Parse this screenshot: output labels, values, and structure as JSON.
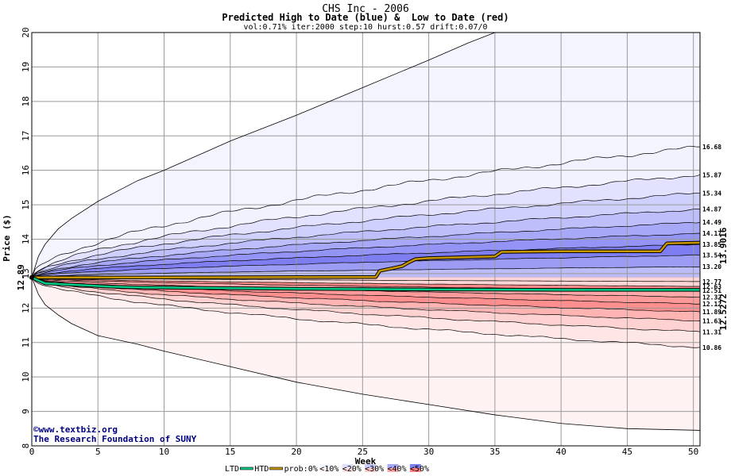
{
  "chart_data": {
    "type": "area",
    "title": "CHS Inc - 2006",
    "subtitle": "Predicted High to Date (blue) &  Low to Date (red)",
    "params": "vol:0.71% iter:2000 step:10 hurst:0.57 drift:0.07/0",
    "xlabel": "Week",
    "ylabel": "Price ($)",
    "xlim": [
      0,
      50.5
    ],
    "ylim": [
      8,
      20
    ],
    "x_ticks": [
      0,
      5,
      10,
      15,
      20,
      25,
      30,
      35,
      40,
      45,
      50
    ],
    "y_ticks": [
      8,
      9,
      10,
      11,
      12,
      13,
      14,
      15,
      16,
      17,
      18,
      19,
      20
    ],
    "grid": true,
    "start_price": 12.89,
    "start_label": "12.89",
    "upper_curves": [
      {
        "end": 16.68,
        "label": "16.68",
        "color": "#f2f2ff"
      },
      {
        "end": 15.87,
        "label": "15.87",
        "color": "#e2e2fe"
      },
      {
        "end": 15.34,
        "label": "15.34",
        "color": "#d0d0fc"
      },
      {
        "end": 14.87,
        "label": "14.87",
        "color": "#bebefa"
      },
      {
        "end": 14.49,
        "label": "14.49",
        "color": "#a8a8f8"
      },
      {
        "end": 14.17,
        "label": "14.17",
        "color": "#9494f6"
      },
      {
        "end": 13.85,
        "label": "13.85",
        "color": "#7e7ef0"
      },
      {
        "end": 13.54,
        "label": "13.54",
        "color": "#9c9cf4"
      },
      {
        "end": 13.2,
        "label": "13.20",
        "color": "#bcbcf8"
      },
      {
        "end": 12.77,
        "label": "12.77",
        "color": "#e4e4fc"
      }
    ],
    "lower_curves": [
      {
        "end": 12.63,
        "label": "12.63",
        "color": "#ffd6d6"
      },
      {
        "end": 12.51,
        "label": "12.51",
        "color": "#ff8a8a"
      },
      {
        "end": 12.32,
        "label": "12.32",
        "color": "#ffaaaa"
      },
      {
        "end": 12.12,
        "label": "12.12",
        "color": "#ff9a9a"
      },
      {
        "end": 11.89,
        "label": "11.89",
        "color": "#ff8e8e"
      },
      {
        "end": 11.63,
        "label": "11.63",
        "color": "#ffb4b4"
      },
      {
        "end": 11.31,
        "label": "11.31",
        "color": "#ffd2d2"
      },
      {
        "end": 10.86,
        "label": "10.86",
        "color": "#ffe6e6"
      }
    ],
    "outer_envelope": {
      "upper": [
        [
          0,
          12.89
        ],
        [
          0.5,
          13.5
        ],
        [
          1,
          13.85
        ],
        [
          2,
          14.3
        ],
        [
          3,
          14.6
        ],
        [
          5,
          15.1
        ],
        [
          8,
          15.7
        ],
        [
          10,
          16.0
        ],
        [
          15,
          16.85
        ],
        [
          20,
          17.6
        ],
        [
          25,
          18.4
        ],
        [
          30,
          19.2
        ],
        [
          33,
          19.7
        ],
        [
          35,
          20.0
        ],
        [
          40,
          20.0
        ],
        [
          50.5,
          20.0
        ]
      ],
      "lower": [
        [
          0,
          12.89
        ],
        [
          0.5,
          12.4
        ],
        [
          1,
          12.1
        ],
        [
          2,
          11.8
        ],
        [
          3,
          11.55
        ],
        [
          5,
          11.2
        ],
        [
          8,
          10.95
        ],
        [
          10,
          10.75
        ],
        [
          15,
          10.3
        ],
        [
          20,
          9.85
        ],
        [
          25,
          9.5
        ],
        [
          30,
          9.2
        ],
        [
          35,
          8.9
        ],
        [
          40,
          8.65
        ],
        [
          45,
          8.5
        ],
        [
          50.5,
          8.45
        ]
      ]
    },
    "series": [
      {
        "name": "HTD",
        "color": "#c89600",
        "points": [
          [
            0,
            12.89
          ],
          [
            10,
            12.89
          ],
          [
            22,
            12.9
          ],
          [
            26,
            12.9
          ],
          [
            26.3,
            13.08
          ],
          [
            26.8,
            13.12
          ],
          [
            27.2,
            13.15
          ],
          [
            28,
            13.22
          ],
          [
            28.5,
            13.33
          ],
          [
            29,
            13.42
          ],
          [
            30,
            13.45
          ],
          [
            35,
            13.5
          ],
          [
            35.5,
            13.63
          ],
          [
            40,
            13.65
          ],
          [
            47.5,
            13.65
          ],
          [
            48,
            13.88
          ],
          [
            50.5,
            13.9
          ]
        ],
        "end_label": "13.9016"
      },
      {
        "name": "LTD",
        "color": "#00cc88",
        "points": [
          [
            0,
            12.89
          ],
          [
            0.5,
            12.8
          ],
          [
            1,
            12.72
          ],
          [
            2,
            12.7
          ],
          [
            3,
            12.68
          ],
          [
            4,
            12.66
          ],
          [
            5,
            12.64
          ],
          [
            6,
            12.62
          ],
          [
            8,
            12.6
          ],
          [
            12,
            12.59
          ],
          [
            20,
            12.56
          ],
          [
            30,
            12.54
          ],
          [
            40,
            12.53
          ],
          [
            50.5,
            12.53
          ]
        ],
        "end_label": "12.5272"
      }
    ],
    "legend": [
      {
        "label": "LTD",
        "color": "#00cc88",
        "kind": "line"
      },
      {
        "label": "HTD",
        "color": "#c89600",
        "kind": "line"
      },
      {
        "label": "prob:0%",
        "kind": "text"
      },
      {
        "label": "<10%",
        "blue": "#f4f4ff",
        "red": "#fff4f4"
      },
      {
        "label": "<20%",
        "blue": "#e0e0fe",
        "red": "#ffe0e0"
      },
      {
        "label": "<30%",
        "blue": "#c8c8fc",
        "red": "#ffc8c8"
      },
      {
        "label": "<40%",
        "blue": "#a8a8f8",
        "red": "#ffa8a8"
      },
      {
        "label": "<50%",
        "blue": "#8080f0",
        "red": "#ff8080"
      }
    ],
    "credit": {
      "line1": "www.textbiz.org",
      "line2": "The Research Foundation of SUNY",
      "symbol": "©"
    }
  }
}
